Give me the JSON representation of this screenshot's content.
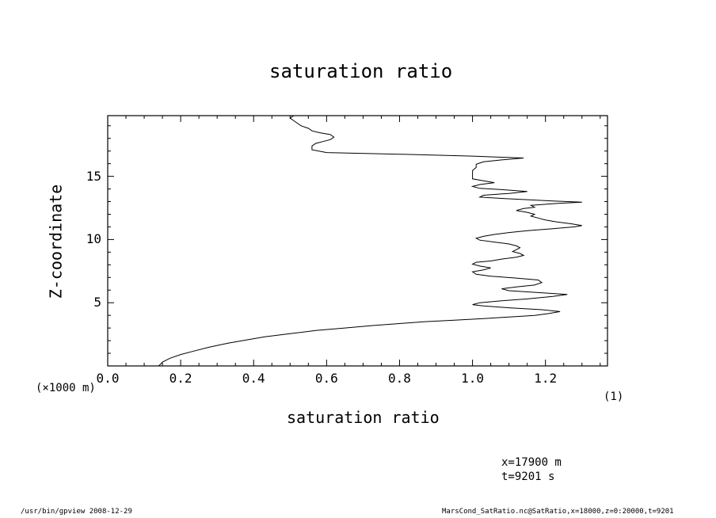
{
  "chart_data": {
    "type": "line",
    "title": "saturation ratio",
    "xlabel": "saturation ratio",
    "xunits_label": "(1)",
    "ylabel": "Z-coordinate",
    "yunits_label": "(×1000 m)",
    "xlim": [
      0.0,
      1.37
    ],
    "ylim": [
      0,
      19.8
    ],
    "xticks": [
      0.0,
      0.2,
      0.4,
      0.6,
      0.8,
      1.0,
      1.2
    ],
    "xtick_labels": [
      "0.0",
      "0.2",
      "0.4",
      "0.6",
      "0.8",
      "1.0",
      "1.2"
    ],
    "yticks": [
      5,
      10,
      15
    ],
    "ytick_labels": [
      "5",
      "10",
      "15"
    ],
    "grid": false,
    "legend": "none",
    "series": [
      {
        "points": [
          [
            0.14,
            0.0
          ],
          [
            0.15,
            0.3
          ],
          [
            0.17,
            0.6
          ],
          [
            0.2,
            0.9
          ],
          [
            0.24,
            1.2
          ],
          [
            0.28,
            1.5
          ],
          [
            0.33,
            1.8
          ],
          [
            0.38,
            2.05
          ],
          [
            0.43,
            2.3
          ],
          [
            0.5,
            2.55
          ],
          [
            0.57,
            2.8
          ],
          [
            0.65,
            3.0
          ],
          [
            0.73,
            3.2
          ],
          [
            0.8,
            3.35
          ],
          [
            0.87,
            3.5
          ],
          [
            0.95,
            3.62
          ],
          [
            1.03,
            3.75
          ],
          [
            1.1,
            3.87
          ],
          [
            1.17,
            4.0
          ],
          [
            1.21,
            4.15
          ],
          [
            1.24,
            4.3
          ],
          [
            1.19,
            4.45
          ],
          [
            1.1,
            4.6
          ],
          [
            1.03,
            4.75
          ],
          [
            1.0,
            4.85
          ],
          [
            1.02,
            5.0
          ],
          [
            1.08,
            5.15
          ],
          [
            1.15,
            5.3
          ],
          [
            1.22,
            5.5
          ],
          [
            1.26,
            5.65
          ],
          [
            1.18,
            5.8
          ],
          [
            1.1,
            5.95
          ],
          [
            1.08,
            6.1
          ],
          [
            1.12,
            6.25
          ],
          [
            1.17,
            6.4
          ],
          [
            1.19,
            6.6
          ],
          [
            1.18,
            6.8
          ],
          [
            1.12,
            6.95
          ],
          [
            1.05,
            7.1
          ],
          [
            1.01,
            7.25
          ],
          [
            1.0,
            7.45
          ],
          [
            1.03,
            7.6
          ],
          [
            1.05,
            7.75
          ],
          [
            1.02,
            7.9
          ],
          [
            1.0,
            8.05
          ],
          [
            1.01,
            8.2
          ],
          [
            1.05,
            8.3
          ],
          [
            1.08,
            8.45
          ],
          [
            1.12,
            8.6
          ],
          [
            1.14,
            8.75
          ],
          [
            1.13,
            8.9
          ],
          [
            1.11,
            9.05
          ],
          [
            1.12,
            9.2
          ],
          [
            1.13,
            9.35
          ],
          [
            1.12,
            9.5
          ],
          [
            1.1,
            9.65
          ],
          [
            1.06,
            9.8
          ],
          [
            1.02,
            9.95
          ],
          [
            1.01,
            10.1
          ],
          [
            1.03,
            10.25
          ],
          [
            1.06,
            10.4
          ],
          [
            1.1,
            10.55
          ],
          [
            1.15,
            10.7
          ],
          [
            1.22,
            10.85
          ],
          [
            1.28,
            11.0
          ],
          [
            1.3,
            11.1
          ],
          [
            1.27,
            11.25
          ],
          [
            1.23,
            11.4
          ],
          [
            1.2,
            11.55
          ],
          [
            1.18,
            11.7
          ],
          [
            1.16,
            11.85
          ],
          [
            1.17,
            12.0
          ],
          [
            1.15,
            12.15
          ],
          [
            1.12,
            12.3
          ],
          [
            1.14,
            12.45
          ],
          [
            1.17,
            12.55
          ],
          [
            1.16,
            12.7
          ],
          [
            1.23,
            12.85
          ],
          [
            1.3,
            12.95
          ],
          [
            1.22,
            13.05
          ],
          [
            1.15,
            13.15
          ],
          [
            1.08,
            13.25
          ],
          [
            1.02,
            13.35
          ],
          [
            1.03,
            13.5
          ],
          [
            1.1,
            13.65
          ],
          [
            1.15,
            13.8
          ],
          [
            1.08,
            13.95
          ],
          [
            1.02,
            14.05
          ],
          [
            1.0,
            14.2
          ],
          [
            1.02,
            14.35
          ],
          [
            1.06,
            14.5
          ],
          [
            1.03,
            14.65
          ],
          [
            1.0,
            14.8
          ],
          [
            1.0,
            15.0
          ],
          [
            1.0,
            15.2
          ],
          [
            1.0,
            15.45
          ],
          [
            1.01,
            15.7
          ],
          [
            1.01,
            15.95
          ],
          [
            1.03,
            16.15
          ],
          [
            1.08,
            16.3
          ],
          [
            1.14,
            16.45
          ],
          [
            1.0,
            16.6
          ],
          [
            0.8,
            16.75
          ],
          [
            0.6,
            16.88
          ],
          [
            0.56,
            17.1
          ],
          [
            0.56,
            17.4
          ],
          [
            0.57,
            17.6
          ],
          [
            0.59,
            17.75
          ],
          [
            0.61,
            17.9
          ],
          [
            0.62,
            18.1
          ],
          [
            0.61,
            18.3
          ],
          [
            0.58,
            18.45
          ],
          [
            0.56,
            18.6
          ],
          [
            0.55,
            18.8
          ],
          [
            0.53,
            19.0
          ],
          [
            0.52,
            19.2
          ],
          [
            0.51,
            19.4
          ],
          [
            0.5,
            19.6
          ],
          [
            0.51,
            19.8
          ]
        ]
      }
    ]
  },
  "info": {
    "x_position": "x=17900 m",
    "time": "t=9201 s",
    "footer_left": "/usr/bin/gpview  2008-12-29",
    "footer_right": "MarsCond_SatRatio.nc@SatRatio,x=18000,z=0:20000,t=9201"
  }
}
